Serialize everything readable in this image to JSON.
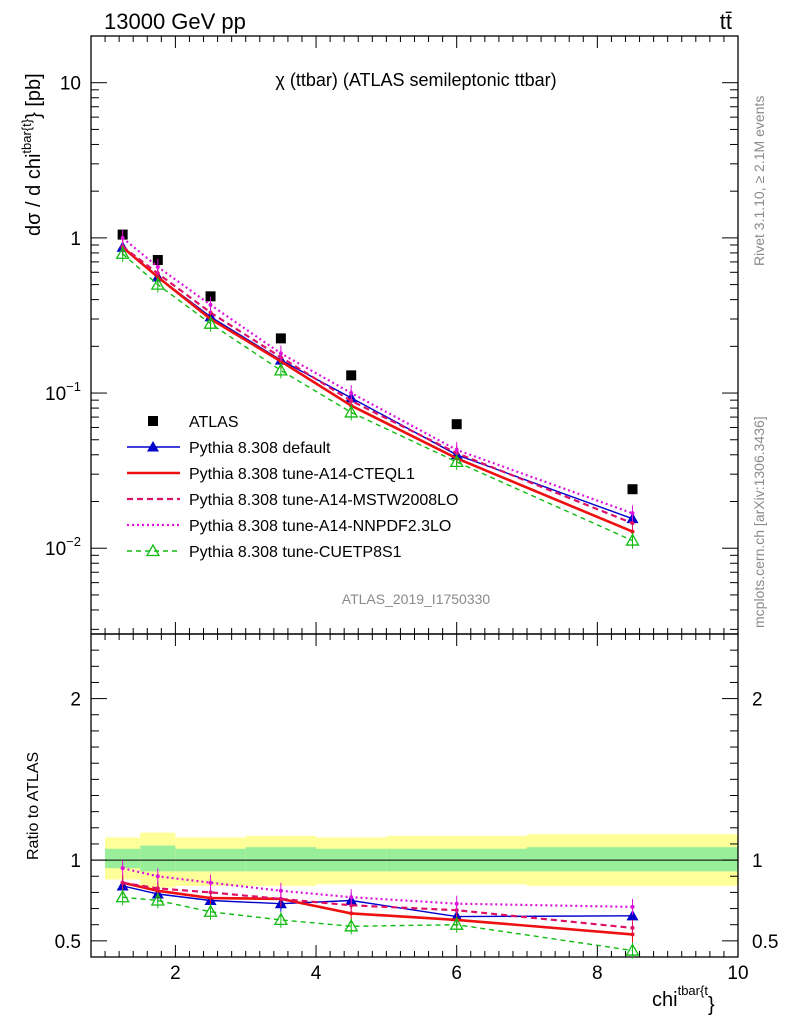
{
  "header": {
    "energy_label": "13000 GeV pp",
    "process_label": "tt̄",
    "plot_title": "χ (ttbar) (ATLAS semileptonic ttbar)",
    "analysis_id": "ATLAS_2019_I1750330",
    "rivet_label": "Rivet 3.1.10, ≥ 2.1M events",
    "mcplots_label": "mcplots.cern.ch [arXiv:1306.3436]"
  },
  "colors": {
    "data": "#000000",
    "default": "#0000cc",
    "cteql1": "#ee1111",
    "mstw": "#dd1166",
    "nnpdf": "#dd11dd",
    "cuetp8s1": "#11bb11",
    "band_inner": "#99ee99",
    "band_outer": "#ffff99"
  },
  "chart_data": [
    {
      "type": "line",
      "ylabel": "dσ / d chi^{tbar{t}} [pb]",
      "yscale": "log",
      "ylim": [
        0.0028,
        20
      ],
      "xlim": [
        0.8,
        10
      ],
      "ytick_labels": [
        "10^-2",
        "10^-1",
        "1",
        "10"
      ],
      "legend_position": "bottom-left",
      "x": [
        1.25,
        1.75,
        2.5,
        3.5,
        4.5,
        6.0,
        8.5
      ],
      "series": [
        {
          "name": "ATLAS",
          "key": "data",
          "values": [
            1.05,
            0.72,
            0.42,
            0.225,
            0.13,
            0.063,
            0.024
          ]
        },
        {
          "name": "Pythia 8.308 default",
          "key": "default",
          "values": [
            0.87,
            0.56,
            0.31,
            0.163,
            0.093,
            0.04,
            0.0155
          ]
        },
        {
          "name": "Pythia 8.308 tune-A14-CTEQL1",
          "key": "cteql1",
          "values": [
            0.87,
            0.56,
            0.3,
            0.16,
            0.083,
            0.038,
            0.0128
          ]
        },
        {
          "name": "Pythia 8.308 tune-A14-MSTW2008LO",
          "key": "mstw",
          "values": [
            0.88,
            0.59,
            0.33,
            0.17,
            0.089,
            0.041,
            0.0145
          ]
        },
        {
          "name": "Pythia 8.308 tune-A14-NNPDF2.3LO",
          "key": "nnpdf",
          "values": [
            1.0,
            0.65,
            0.37,
            0.18,
            0.1,
            0.043,
            0.0168
          ]
        },
        {
          "name": "Pythia 8.308 tune-CUETP8S1",
          "key": "cuetp8s1",
          "values": [
            0.79,
            0.5,
            0.28,
            0.14,
            0.075,
            0.036,
            0.0112
          ]
        }
      ]
    },
    {
      "type": "line",
      "xlabel": "chi^{tbar{t}}",
      "ylabel": "Ratio to ATLAS",
      "ylim": [
        0.4,
        2.4
      ],
      "xlim": [
        0.8,
        10
      ],
      "yticks": [
        0.5,
        1,
        2
      ],
      "ytick_labels": [
        "0.5",
        "1",
        "2"
      ],
      "xticks": [
        2,
        4,
        6,
        8,
        10
      ],
      "xtick_labels": [
        "2",
        "4",
        "6",
        "8",
        "10"
      ],
      "x": [
        1.25,
        1.75,
        2.5,
        3.5,
        4.5,
        6.0,
        8.5
      ],
      "series": [
        {
          "name": "Pythia 8.308 default",
          "key": "default",
          "values": [
            0.84,
            0.79,
            0.75,
            0.73,
            0.75,
            0.65,
            0.655
          ]
        },
        {
          "name": "Pythia 8.308 tune-A14-CTEQL1",
          "key": "cteql1",
          "values": [
            0.86,
            0.81,
            0.765,
            0.76,
            0.67,
            0.63,
            0.54
          ]
        },
        {
          "name": "Pythia 8.308 tune-A14-MSTW2008LO",
          "key": "mstw",
          "values": [
            0.86,
            0.825,
            0.8,
            0.76,
            0.72,
            0.69,
            0.58
          ]
        },
        {
          "name": "Pythia 8.308 tune-A14-NNPDF2.3LO",
          "key": "nnpdf",
          "values": [
            0.95,
            0.9,
            0.86,
            0.81,
            0.77,
            0.73,
            0.71
          ]
        },
        {
          "name": "Pythia 8.308 tune-CUETP8S1",
          "key": "cuetp8s1",
          "values": [
            0.77,
            0.75,
            0.68,
            0.63,
            0.59,
            0.6,
            0.44
          ]
        }
      ],
      "uncertainty_bands": {
        "edges": [
          1.0,
          1.5,
          2.0,
          3.0,
          4.0,
          5.0,
          7.0,
          10.0
        ],
        "inner": [
          [
            0.95,
            1.07
          ],
          [
            0.93,
            1.09
          ],
          [
            0.93,
            1.07
          ],
          [
            0.93,
            1.08
          ],
          [
            0.93,
            1.07
          ],
          [
            0.93,
            1.07
          ],
          [
            0.93,
            1.08
          ]
        ],
        "outer": [
          [
            0.88,
            1.14
          ],
          [
            0.83,
            1.17
          ],
          [
            0.84,
            1.14
          ],
          [
            0.84,
            1.15
          ],
          [
            0.85,
            1.14
          ],
          [
            0.85,
            1.15
          ],
          [
            0.84,
            1.16
          ]
        ]
      }
    }
  ]
}
